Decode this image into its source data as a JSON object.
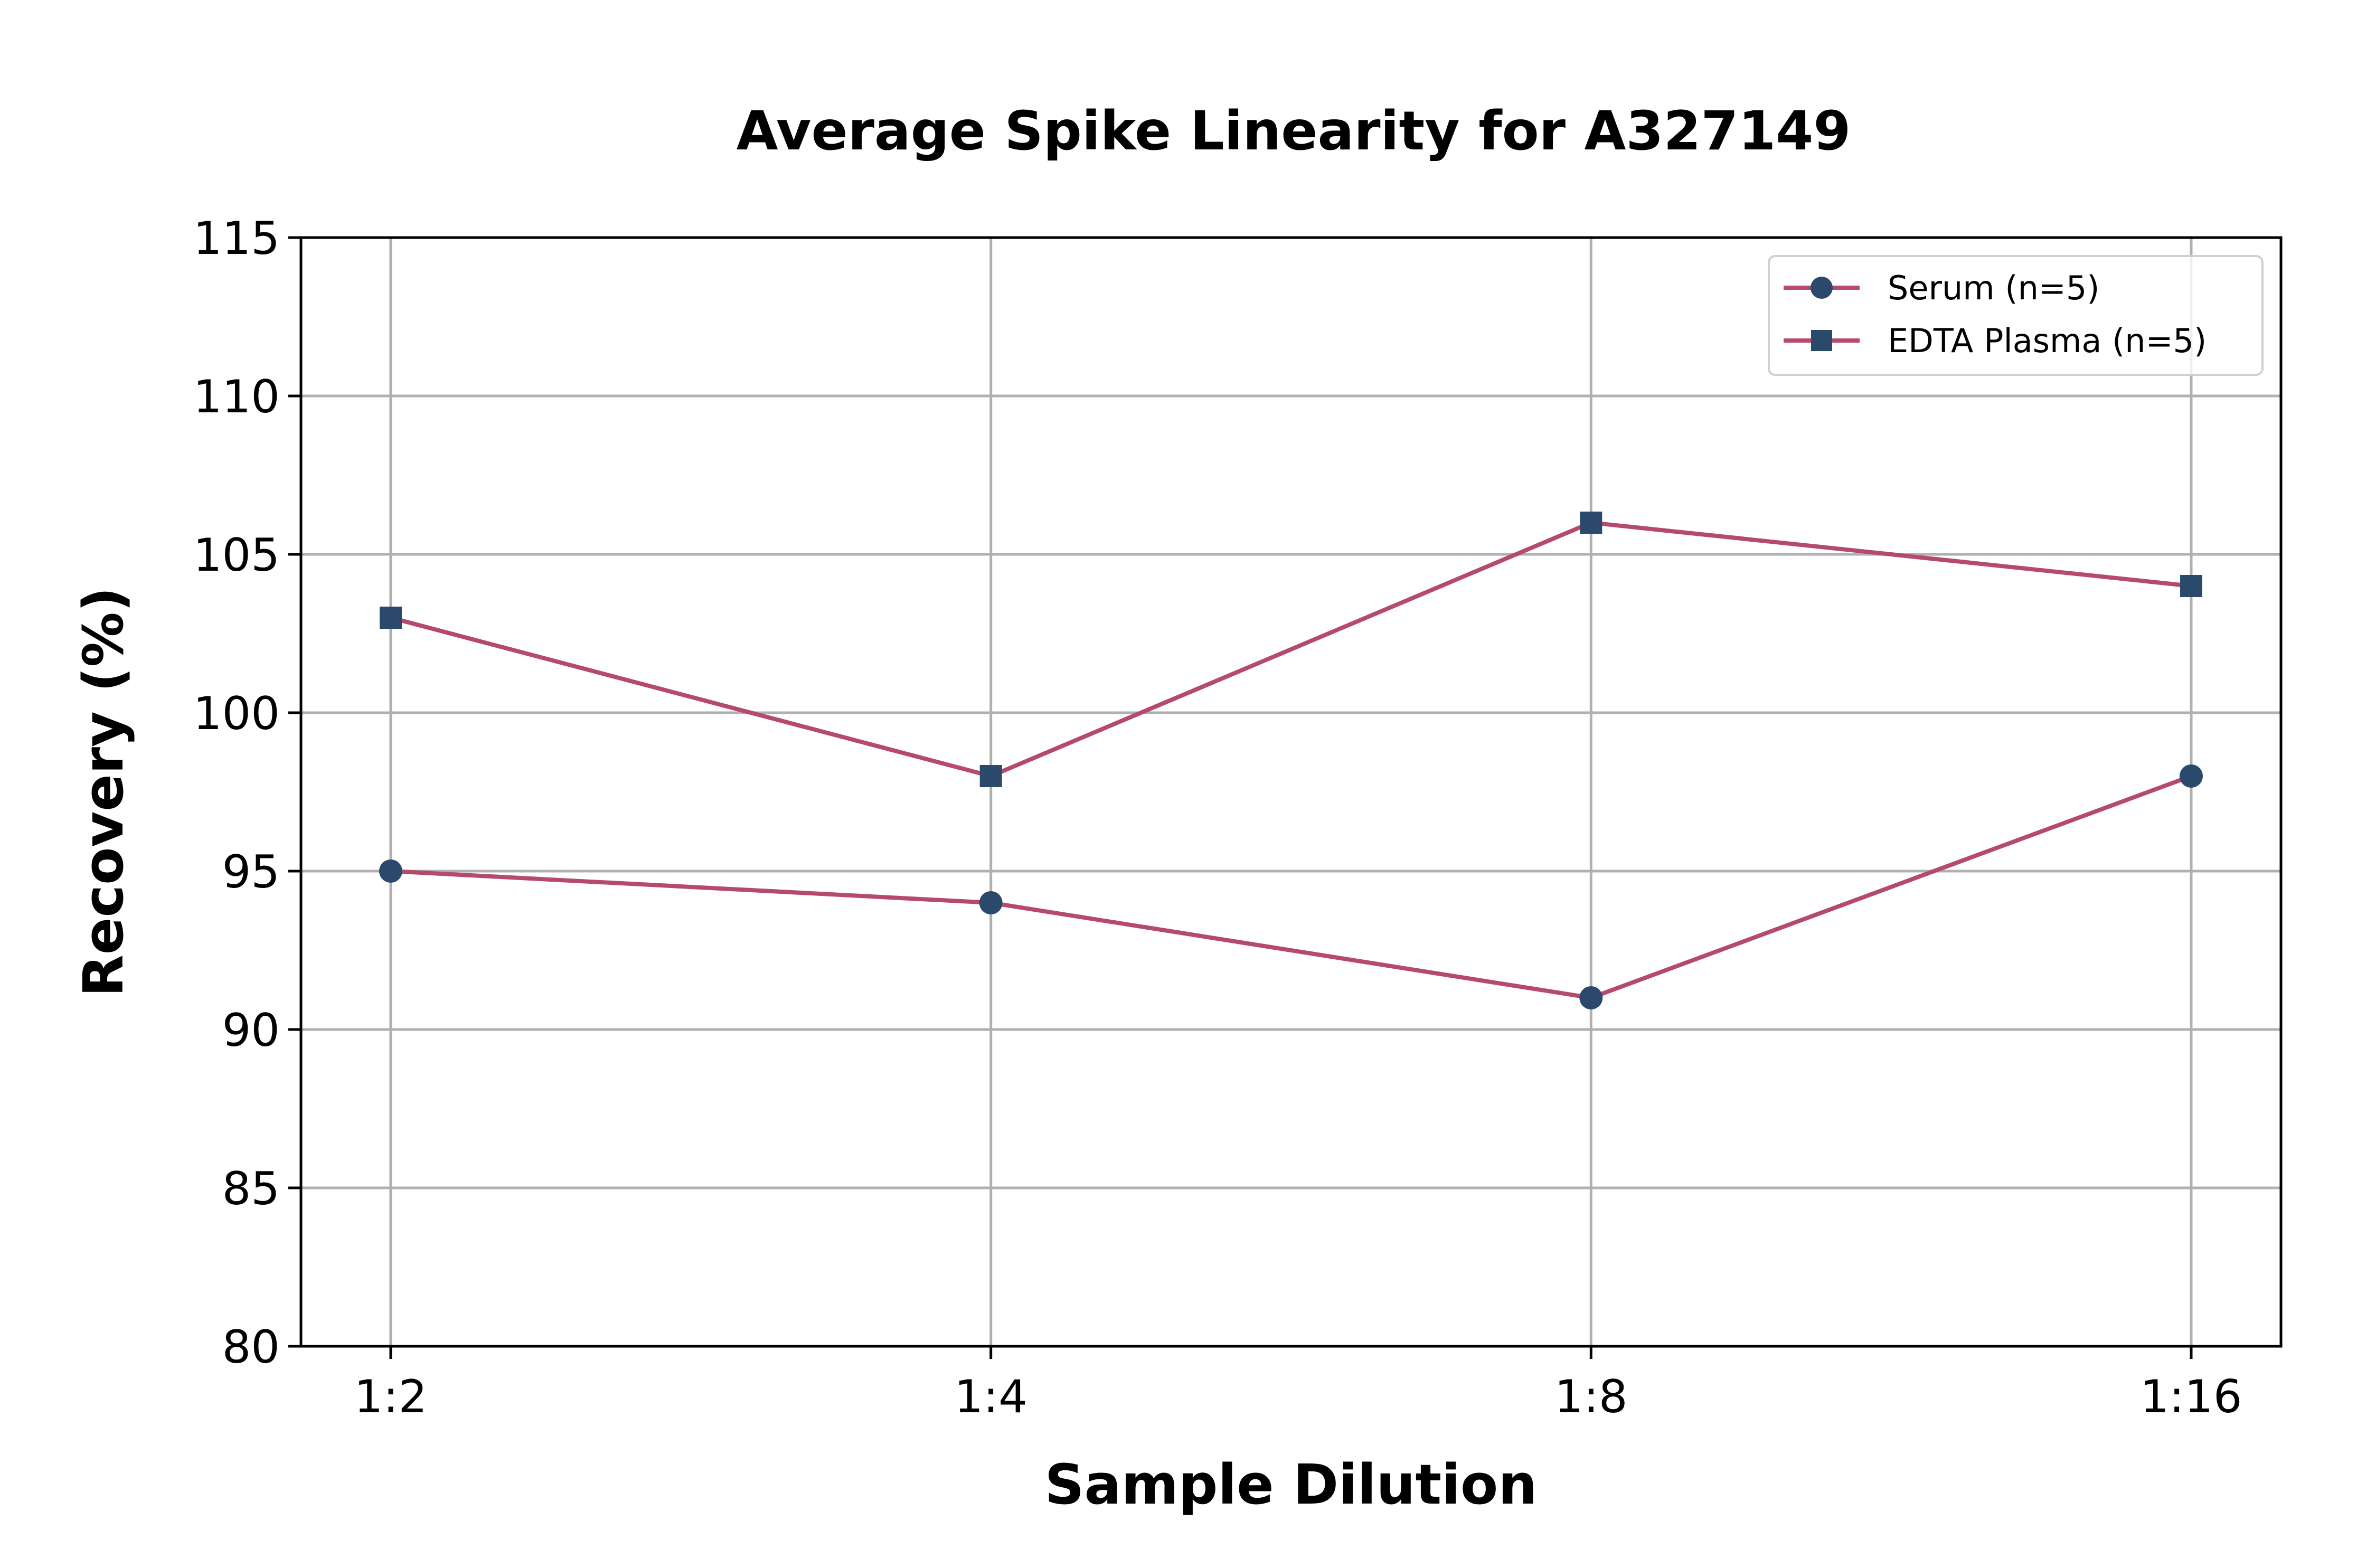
{
  "chart_data": {
    "type": "line",
    "title": "Average Spike Linearity for A327149",
    "xlabel": "Sample Dilution",
    "ylabel": "Recovery (%)",
    "categories": [
      "1:2",
      "1:4",
      "1:8",
      "1:16"
    ],
    "ylim": [
      80,
      115
    ],
    "yticks": [
      80,
      85,
      90,
      95,
      100,
      105,
      110,
      115
    ],
    "grid": true,
    "legend_position": "top-right",
    "line_color": "#b5496e",
    "marker_color": "#2b4a6b",
    "series": [
      {
        "name": "Serum (n=5)",
        "marker": "circle",
        "values": [
          95,
          94,
          91,
          98
        ]
      },
      {
        "name": "EDTA Plasma (n=5)",
        "marker": "square",
        "values": [
          103,
          98,
          106,
          104
        ]
      }
    ]
  }
}
